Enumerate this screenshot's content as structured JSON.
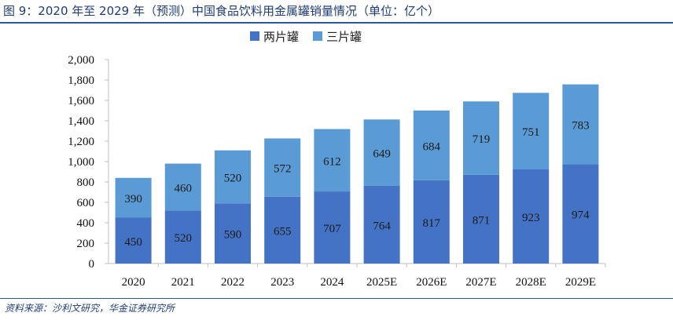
{
  "title": "图 9：2020 年至 2029 年（预测）中国食品饮料用金属罐销量情况（单位：亿个）",
  "source": "资料来源：沙利文研究，华金证券研究所",
  "colors": {
    "series_1": "#4472c4",
    "series_2": "#5b9bd5",
    "title": "#1f3c78",
    "rule": "#2e5597"
  },
  "chart_data": {
    "type": "bar",
    "stacked": true,
    "title": "图 9：2020 年至 2029 年（预测）中国食品饮料用金属罐销量情况（单位：亿个）",
    "categories": [
      "2020",
      "2021",
      "2022",
      "2023",
      "2024",
      "2025E",
      "2026E",
      "2027E",
      "2028E",
      "2029E"
    ],
    "series": [
      {
        "name": "两片罐",
        "values": [
          450,
          520,
          590,
          655,
          707,
          764,
          817,
          871,
          923,
          974
        ]
      },
      {
        "name": "三片罐",
        "values": [
          390,
          460,
          520,
          572,
          612,
          649,
          684,
          719,
          751,
          783
        ]
      }
    ],
    "ylim": [
      0,
      2000
    ],
    "yticks": [
      "0",
      "200",
      "400",
      "600",
      "800",
      "1,000",
      "1,200",
      "1,400",
      "1,600",
      "1,800",
      "2,000"
    ],
    "ytick_values": [
      0,
      200,
      400,
      600,
      800,
      1000,
      1200,
      1400,
      1600,
      1800,
      2000
    ],
    "legend_position": "top-center",
    "grid": false,
    "xlabel": "",
    "ylabel": ""
  }
}
